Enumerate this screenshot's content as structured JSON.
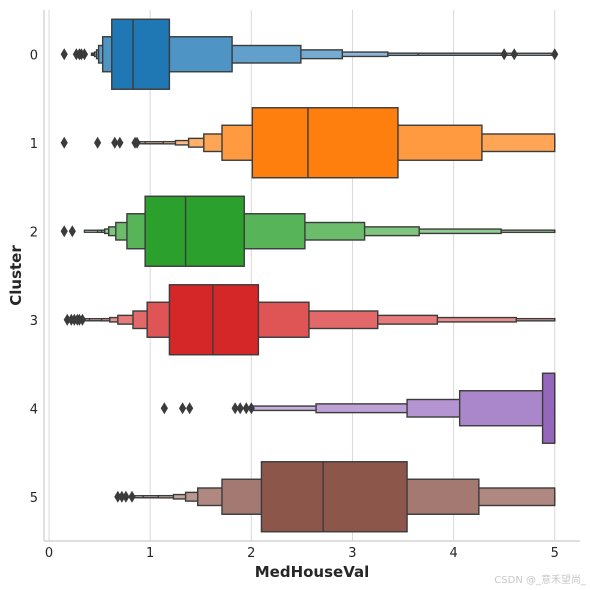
{
  "watermark": "CSDN @_意禾望尚_",
  "chart_data": {
    "type": "boxen",
    "orientation": "horizontal",
    "xlabel": "MedHouseVal",
    "ylabel": "Cluster",
    "xlim": [
      -0.05,
      5.25
    ],
    "xticks": [
      0,
      1,
      2,
      3,
      4,
      5
    ],
    "xgrid": true,
    "ygrid": false,
    "categories": [
      "0",
      "1",
      "2",
      "3",
      "4",
      "5"
    ],
    "series": [
      {
        "category": "0",
        "color": "#1f77b4",
        "median": 0.83,
        "boxes": [
          [
            0.62,
            1.19
          ],
          [
            0.53,
            1.81
          ],
          [
            0.49,
            2.49
          ],
          [
            0.47,
            2.9
          ],
          [
            0.45,
            3.35
          ],
          [
            0.44,
            3.65
          ],
          [
            0.43,
            4.5
          ],
          [
            0.42,
            5.0
          ]
        ],
        "outliers": [
          0.15,
          0.27,
          0.3,
          0.32,
          0.35,
          4.5,
          4.6,
          5.0
        ]
      },
      {
        "category": "1",
        "color": "#ff7f0e",
        "median": 2.56,
        "boxes": [
          [
            2.01,
            3.45
          ],
          [
            1.71,
            4.28
          ],
          [
            1.53,
            5.0
          ],
          [
            1.38,
            5.0
          ],
          [
            1.25,
            5.0
          ],
          [
            1.13,
            5.0
          ],
          [
            0.95,
            5.0
          ],
          [
            0.87,
            5.0
          ]
        ],
        "outliers": [
          0.15,
          0.48,
          0.65,
          0.7,
          0.85,
          0.87
        ]
      },
      {
        "category": "2",
        "color": "#2ca02c",
        "median": 1.35,
        "boxes": [
          [
            0.95,
            1.93
          ],
          [
            0.77,
            2.53
          ],
          [
            0.66,
            3.12
          ],
          [
            0.59,
            3.66
          ],
          [
            0.55,
            4.47
          ],
          [
            0.52,
            5.0
          ],
          [
            0.48,
            5.0
          ],
          [
            0.35,
            5.0
          ]
        ],
        "outliers": [
          0.15,
          0.23
        ]
      },
      {
        "category": "3",
        "color": "#d62728",
        "median": 1.62,
        "boxes": [
          [
            1.19,
            2.07
          ],
          [
            0.97,
            2.57
          ],
          [
            0.83,
            3.25
          ],
          [
            0.68,
            3.84
          ],
          [
            0.6,
            4.62
          ],
          [
            0.52,
            5.0
          ],
          [
            0.4,
            5.0
          ],
          [
            0.33,
            5.0
          ]
        ],
        "outliers": [
          0.18,
          0.22,
          0.25,
          0.28,
          0.3,
          0.33
        ]
      },
      {
        "category": "4",
        "color": "#9467bd",
        "median": 5.0,
        "boxes": [
          [
            4.88,
            5.0
          ],
          [
            4.06,
            5.0
          ],
          [
            3.54,
            5.0
          ],
          [
            2.64,
            5.0
          ],
          [
            2.0,
            5.0
          ]
        ],
        "outliers": [
          1.14,
          1.32,
          1.39,
          1.84,
          1.89,
          1.95,
          2.0
        ]
      },
      {
        "category": "5",
        "color": "#8c564b",
        "median": 2.71,
        "boxes": [
          [
            2.1,
            3.54
          ],
          [
            1.71,
            4.25
          ],
          [
            1.47,
            5.0
          ],
          [
            1.35,
            5.0
          ],
          [
            1.23,
            5.0
          ],
          [
            1.08,
            5.0
          ],
          [
            0.93,
            5.0
          ],
          [
            0.82,
            5.0
          ]
        ],
        "outliers": [
          0.68,
          0.72,
          0.76,
          0.82
        ]
      }
    ]
  }
}
